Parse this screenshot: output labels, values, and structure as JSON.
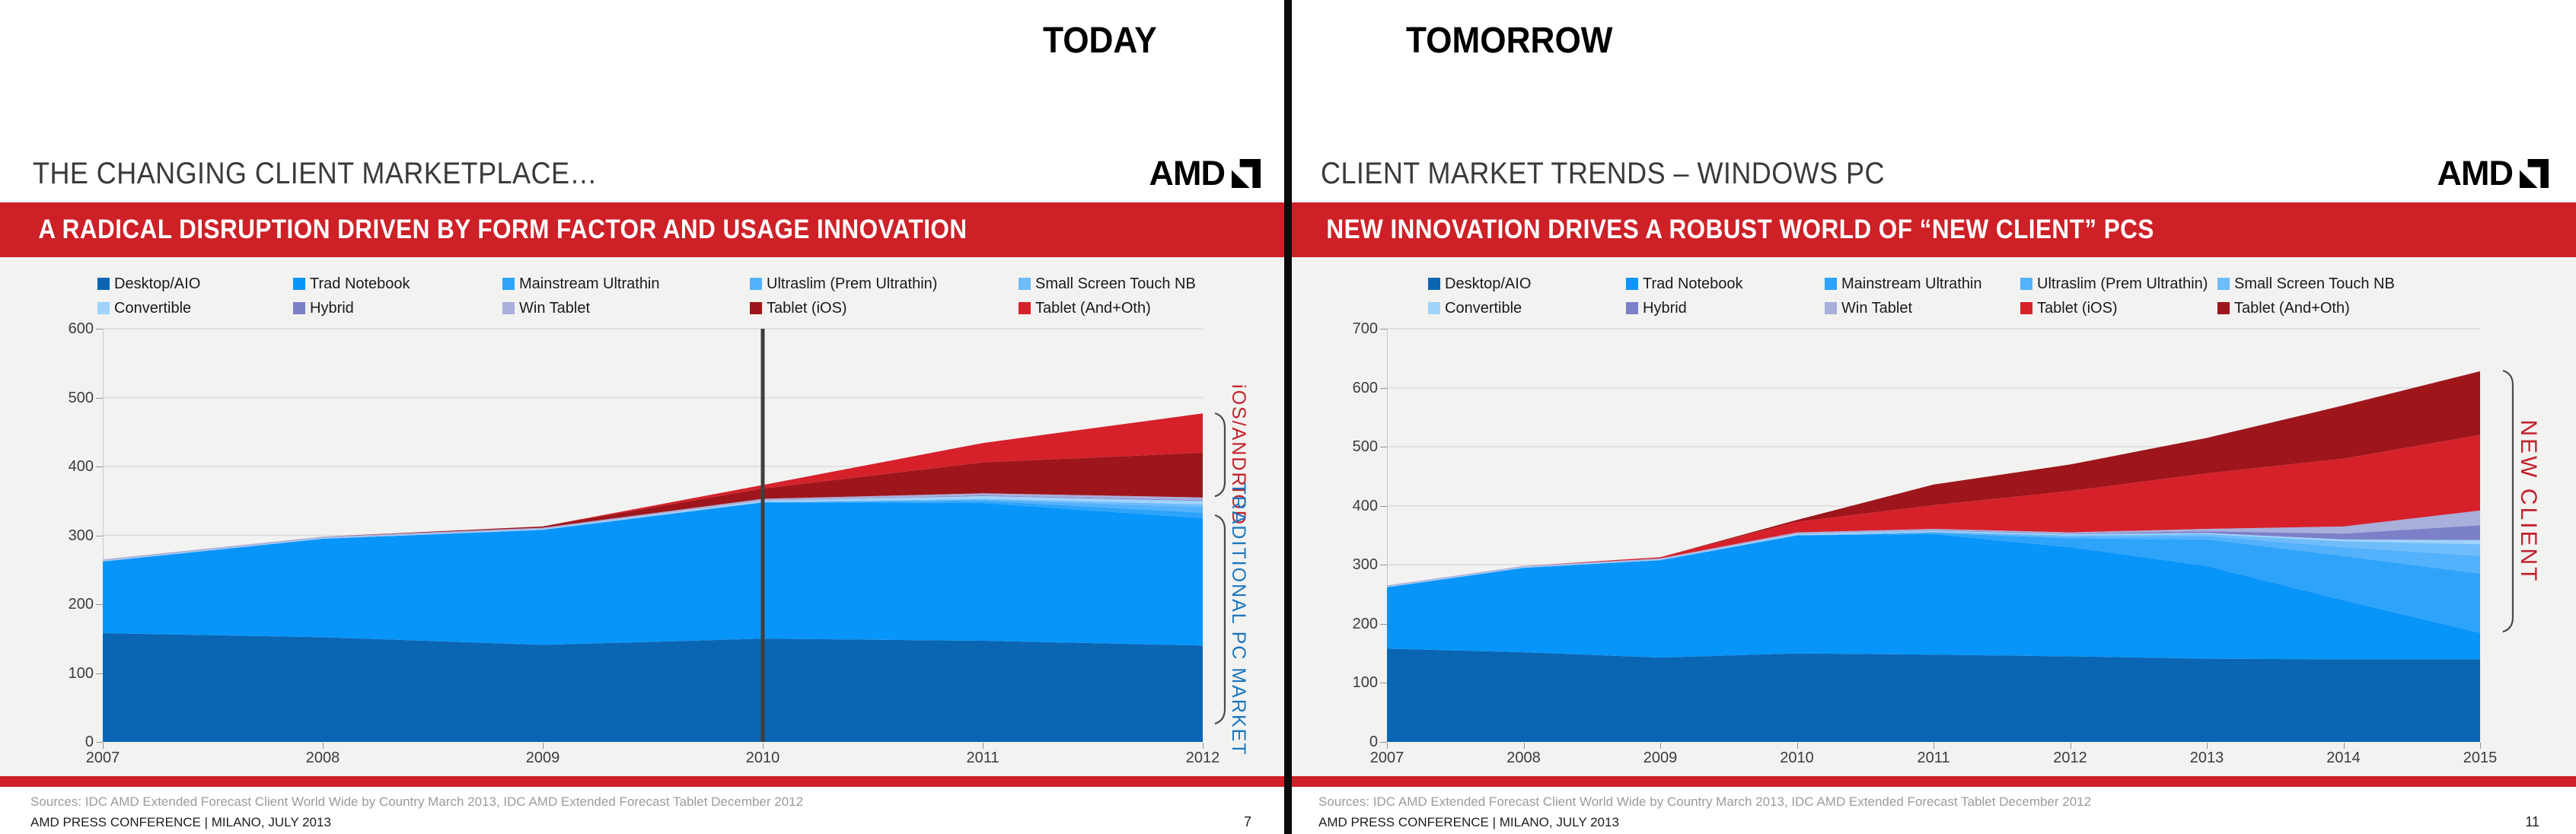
{
  "brand_red": "#CE2027",
  "divider_color": "#0A0A0A",
  "slides": [
    {
      "top_label": "TODAY",
      "title": "THE CHANGING CLIENT MARKETPLACE…",
      "logo_text": "AMD",
      "banner": "A RADICAL DISRUPTION DRIVEN BY FORM FACTOR AND USAGE INNOVATION",
      "sources": "Sources: IDC AMD Extended Forecast Client World Wide by Country March 2013,  IDC AMD Extended Forecast Tablet December 2012",
      "footer": "AMD PRESS CONFERENCE | MILANO, JULY 2013",
      "page_number": "7",
      "annotations": [
        {
          "text": "iOS/ANDRIOD",
          "color": "#C2202B",
          "value_from": 355,
          "value_to": 478
        },
        {
          "text": "TRADITIONAL PC MARKET",
          "color": "#1C76BD",
          "value_from": 25,
          "value_to": 330
        }
      ],
      "chart_data": {
        "type": "area",
        "stacked": true,
        "title": "",
        "xlabel": "",
        "ylabel": "",
        "grid": true,
        "legend_position": "top",
        "x": [
          2007,
          2008,
          2009,
          2010,
          2011,
          2012
        ],
        "ylim": [
          0,
          600
        ],
        "ytick_step": 100,
        "marker_x": 2010,
        "series": [
          {
            "name": "Desktop/AIO",
            "color": "#0A66B2",
            "values": [
              158,
              152,
              141,
              150,
              147,
              140
            ]
          },
          {
            "name": "Trad Notebook",
            "color": "#0895FA",
            "values": [
              104,
              143,
              167,
              198,
              200,
              185
            ]
          },
          {
            "name": "Mainstream Ultrathin",
            "color": "#2EA3FA",
            "values": [
              0,
              0,
              0,
              0,
              3,
              8
            ]
          },
          {
            "name": "Ultraslim (Prem Ultrathin)",
            "color": "#54B1FB",
            "values": [
              0,
              0,
              0,
              0,
              2,
              8
            ]
          },
          {
            "name": "Small Screen Touch NB",
            "color": "#6FBCFB",
            "values": [
              0,
              0,
              0,
              0,
              1,
              4
            ]
          },
          {
            "name": "Convertible",
            "color": "#9FD3FC",
            "values": [
              1,
              1,
              1,
              2,
              4,
              5
            ]
          },
          {
            "name": "Hybrid",
            "color": "#7B80C8",
            "values": [
              0,
              0,
              0,
              0,
              1,
              1
            ]
          },
          {
            "name": "Win Tablet",
            "color": "#A9AEDB",
            "values": [
              2,
              2,
              2,
              3,
              3,
              4
            ]
          },
          {
            "name": "Tablet (iOS)",
            "color": "#9E161B",
            "values": [
              0,
              0,
              2,
              15,
              45,
              65
            ]
          },
          {
            "name": "Tablet (And+Oth)",
            "color": "#D6212B",
            "values": [
              0,
              0,
              0,
              5,
              28,
              57
            ]
          }
        ]
      }
    },
    {
      "top_label": "TOMORROW",
      "title": "CLIENT MARKET TRENDS – WINDOWS PC",
      "logo_text": "AMD",
      "banner": "NEW INNOVATION DRIVES A ROBUST WORLD OF “NEW CLIENT” PCS",
      "sources": "Sources: IDC AMD Extended Forecast Client World Wide by Country March 2013,  IDC AMD Extended Forecast Tablet December 2012",
      "footer": "AMD PRESS CONFERENCE | MILANO, JULY 2013",
      "page_number": "11",
      "annotations": [
        {
          "text": "NEW CLIENT",
          "color": "#C2202B",
          "value_from": 185,
          "value_to": 630
        }
      ],
      "chart_data": {
        "type": "area",
        "stacked": true,
        "title": "",
        "xlabel": "",
        "ylabel": "",
        "grid": true,
        "legend_position": "top",
        "x": [
          2007,
          2008,
          2009,
          2010,
          2011,
          2012,
          2013,
          2014,
          2015
        ],
        "ylim": [
          0,
          700
        ],
        "ytick_step": 100,
        "marker_x": null,
        "series": [
          {
            "name": "Desktop/AIO",
            "color": "#0A66B2",
            "values": [
              158,
              152,
              143,
              150,
              148,
              145,
              141,
              140,
              140
            ]
          },
          {
            "name": "Trad Notebook",
            "color": "#0895FA",
            "values": [
              104,
              143,
              165,
              200,
              204,
              185,
              157,
              100,
              45
            ]
          },
          {
            "name": "Mainstream Ultrathin",
            "color": "#2EA3FA",
            "values": [
              0,
              0,
              0,
              0,
              2,
              15,
              45,
              75,
              100
            ]
          },
          {
            "name": "Ultraslim (Prem Ultrathin)",
            "color": "#54B1FB",
            "values": [
              0,
              0,
              0,
              0,
              1,
              3,
              6,
              15,
              30
            ]
          },
          {
            "name": "Small Screen Touch NB",
            "color": "#6FBCFB",
            "values": [
              0,
              0,
              0,
              0,
              1,
              2,
              3,
              10,
              20
            ]
          },
          {
            "name": "Convertible",
            "color": "#9FD3FC",
            "values": [
              1,
              1,
              1,
              2,
              2,
              2,
              2,
              3,
              7
            ]
          },
          {
            "name": "Hybrid",
            "color": "#7B80C8",
            "values": [
              0,
              0,
              0,
              0,
              1,
              1,
              3,
              10,
              25
            ]
          },
          {
            "name": "Win Tablet",
            "color": "#A9AEDB",
            "values": [
              2,
              2,
              2,
              3,
              2,
              2,
              4,
              12,
              25
            ]
          },
          {
            "name": "Tablet (iOS)",
            "color": "#D6212B",
            "values": [
              0,
              0,
              2,
              18,
              40,
              70,
              94,
              115,
              128
            ]
          },
          {
            "name": "Tablet (And+Oth)",
            "color": "#9E161B",
            "values": [
              0,
              0,
              0,
              3,
              35,
              45,
              60,
              90,
              108
            ]
          }
        ]
      }
    }
  ]
}
